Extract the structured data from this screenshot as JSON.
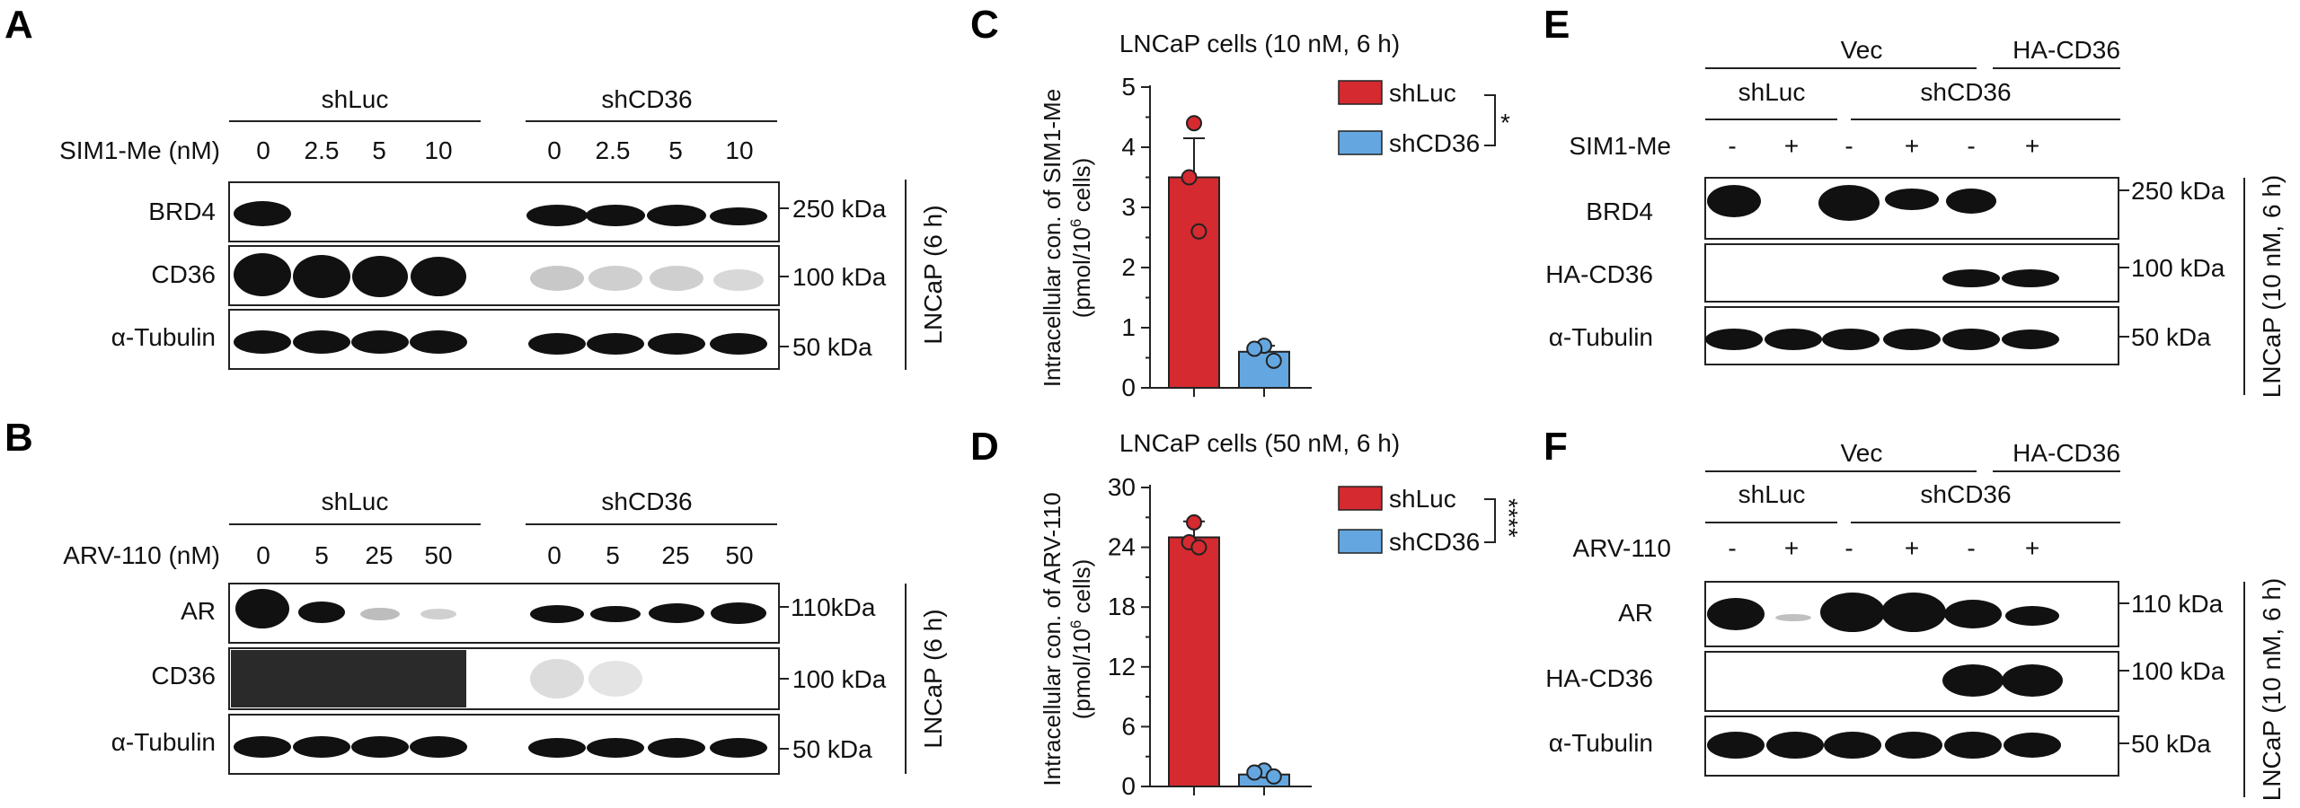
{
  "panels": {
    "A": {
      "label": "A",
      "groups": [
        "shLuc",
        "shCD36"
      ],
      "treatment_label": "SIM1-Me (nM)",
      "doses": [
        "0",
        "2.5",
        "5",
        "10",
        "0",
        "2.5",
        "5",
        "10"
      ],
      "rows": [
        "BRD4",
        "CD36",
        "α-Tubulin"
      ],
      "markers": [
        "250 kDa",
        "100 kDa",
        "50 kDa"
      ],
      "side_label": "LNCaP (6 h)"
    },
    "B": {
      "label": "B",
      "groups": [
        "shLuc",
        "shCD36"
      ],
      "treatment_label": "ARV-110 (nM)",
      "doses": [
        "0",
        "5",
        "25",
        "50",
        "0",
        "5",
        "25",
        "50"
      ],
      "rows": [
        "AR",
        "CD36",
        "α-Tubulin"
      ],
      "markers": [
        "110kDa",
        "100 kDa",
        "50 kDa"
      ],
      "side_label": "LNCaP (6 h)"
    },
    "E": {
      "label": "E",
      "top_groups": [
        "Vec",
        "HA-CD36"
      ],
      "groups": [
        "shLuc",
        "shCD36"
      ],
      "treatment_label": "SIM1-Me",
      "signs": [
        "-",
        "+",
        "-",
        "+",
        "-",
        "+"
      ],
      "rows": [
        "BRD4",
        "HA-CD36",
        "α-Tubulin"
      ],
      "markers": [
        "250 kDa",
        "100 kDa",
        "50 kDa"
      ],
      "side_label": "LNCaP (10 nM, 6 h)"
    },
    "F": {
      "label": "F",
      "top_groups": [
        "Vec",
        "HA-CD36"
      ],
      "groups": [
        "shLuc",
        "shCD36"
      ],
      "treatment_label": "ARV-110",
      "signs": [
        "-",
        "+",
        "-",
        "+",
        "-",
        "+"
      ],
      "rows": [
        "AR",
        "HA-CD36",
        "α-Tubulin"
      ],
      "markers": [
        "110 kDa",
        "100 kDa",
        "50 kDa"
      ],
      "side_label": "LNCaP (10 nM, 6 h)"
    }
  },
  "colors": {
    "shLuc": "#d42a30",
    "shCD36": "#64a7e0"
  },
  "chart_data": [
    {
      "panel": "C",
      "type": "bar",
      "title": "LNCaP cells (10 nM, 6 h)",
      "ylabel_line1": "Intracellular con. of SIM1-Me",
      "ylabel_line2_pre": "(pmol/10",
      "ylabel_sup": "6",
      "ylabel_line2_post": " cells)",
      "categories": [
        "shLuc",
        "shCD36"
      ],
      "values": [
        3.5,
        0.6
      ],
      "errors": [
        0.65,
        0.1
      ],
      "points": [
        [
          4.4,
          3.5,
          2.6
        ],
        [
          0.7,
          0.65,
          0.45
        ]
      ],
      "ylim": [
        0,
        5
      ],
      "yticks": [
        0,
        1,
        2,
        3,
        4,
        5
      ],
      "ytick_labels": [
        "0",
        "1",
        "2",
        "3",
        "4",
        "5"
      ],
      "legend": [
        "shLuc",
        "shCD36"
      ],
      "significance": "*"
    },
    {
      "panel": "D",
      "type": "bar",
      "title": "LNCaP cells (50 nM, 6 h)",
      "ylabel_line1": "Intracellular con. of ARV-110",
      "ylabel_line2_pre": "(pmol/10",
      "ylabel_sup": "6",
      "ylabel_line2_post": " cells)",
      "categories": [
        "shLuc",
        "shCD36"
      ],
      "values": [
        25,
        1.2
      ],
      "errors": [
        1.6,
        0.3
      ],
      "points": [
        [
          26.5,
          24.5,
          24.0
        ],
        [
          1.6,
          1.4,
          1.0
        ]
      ],
      "ylim": [
        0,
        30
      ],
      "yticks": [
        0,
        6,
        12,
        18,
        24,
        30
      ],
      "ytick_labels": [
        "0",
        "6",
        "12",
        "18",
        "24",
        "30"
      ],
      "legend": [
        "shLuc",
        "shCD36"
      ],
      "significance": "****"
    }
  ]
}
